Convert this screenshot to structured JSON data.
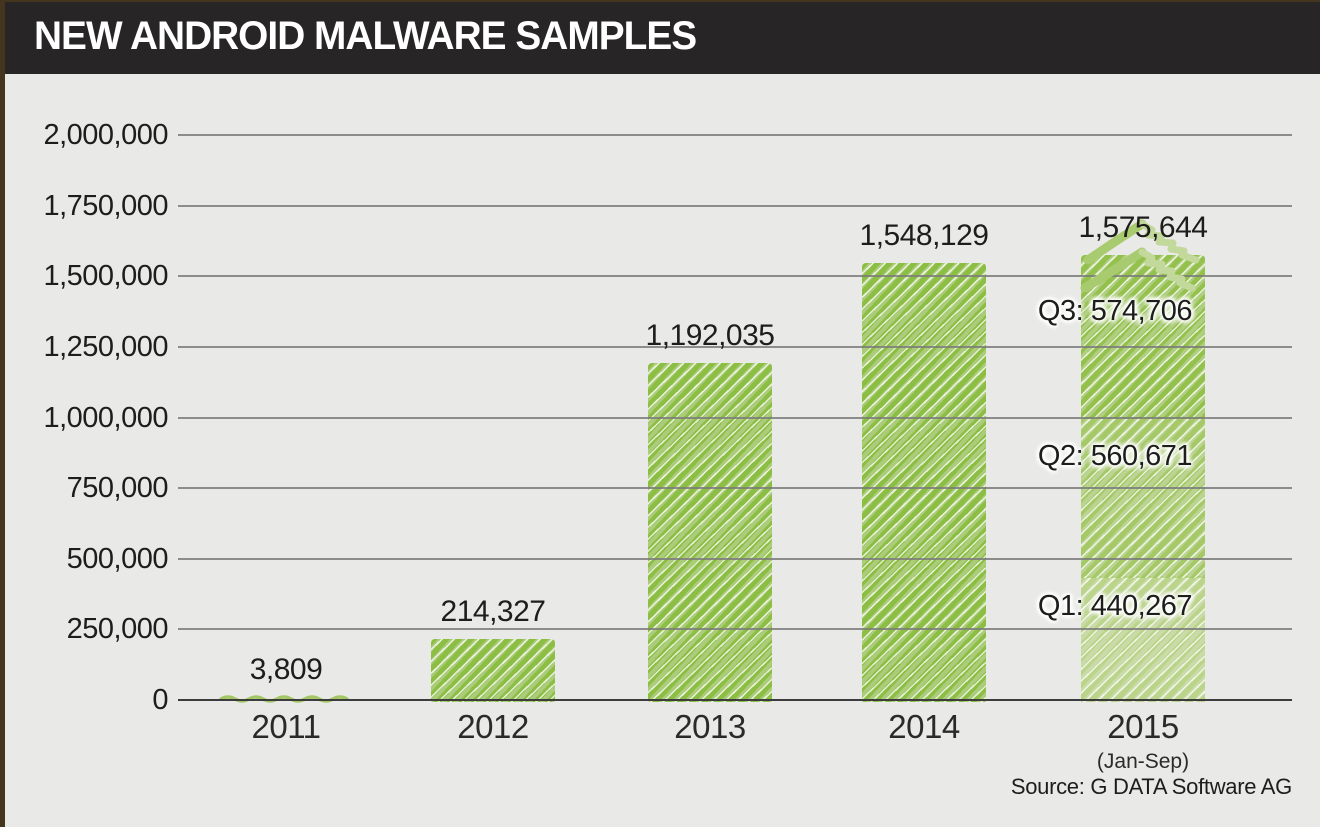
{
  "header": {
    "title": "NEW ANDROID MALWARE SAMPLES"
  },
  "chart_data": {
    "type": "bar",
    "title": "NEW ANDROID MALWARE SAMPLES",
    "xlabel": "",
    "ylabel": "",
    "ylim": [
      0,
      2000000
    ],
    "grid": true,
    "legend_position": "none",
    "categories": [
      "2011",
      "2012",
      "2013",
      "2014",
      "2015"
    ],
    "category_sublabels": [
      "",
      "",
      "",
      "",
      "(Jan-Sep)"
    ],
    "values": [
      3809,
      214327,
      1192035,
      1548129,
      1575644
    ],
    "value_labels": [
      "3,809",
      "214,327",
      "1,192,035",
      "1,548,129",
      "1,575,644"
    ],
    "y_ticks": [
      {
        "value": 0,
        "label": "0"
      },
      {
        "value": 250000,
        "label": "250,000"
      },
      {
        "value": 500000,
        "label": "500,000"
      },
      {
        "value": 750000,
        "label": "750,000"
      },
      {
        "value": 1000000,
        "label": "1,000,000"
      },
      {
        "value": 1250000,
        "label": "1,250,000"
      },
      {
        "value": 1500000,
        "label": "1,500,000"
      },
      {
        "value": 1750000,
        "label": "1,750,000"
      },
      {
        "value": 2000000,
        "label": "2,000,000"
      }
    ],
    "breakdown_2015": [
      {
        "quarter": "Q1",
        "value": 440267,
        "text": "Q1: 440,267"
      },
      {
        "quarter": "Q2",
        "value": 560671,
        "text": "Q2: 560,671"
      },
      {
        "quarter": "Q3",
        "value": 574706,
        "text": "Q3: 574,706"
      }
    ],
    "annotation": "hand-drawn double upward chevron above the 2015 bar indicating continued growth",
    "source": "Source: G DATA Software AG",
    "colors": {
      "background": "#e9e9e8",
      "header_bg": "#272525",
      "header_text": "#ffffff",
      "frame": "#44351f",
      "bar_green": "#8dbe44",
      "bar_green_2015_q3": "#93c14c",
      "bar_green_2015_q2": "#a4c966",
      "bar_green_2015_q1": "#bad489",
      "squiggle_green": "#a3c766",
      "chevron_dark": "#a9cb70",
      "chevron_light": "#c3d89b",
      "gridline": "#7b7b7b",
      "baseline": "#3c3c3c",
      "text": "#1d1d1b"
    }
  }
}
